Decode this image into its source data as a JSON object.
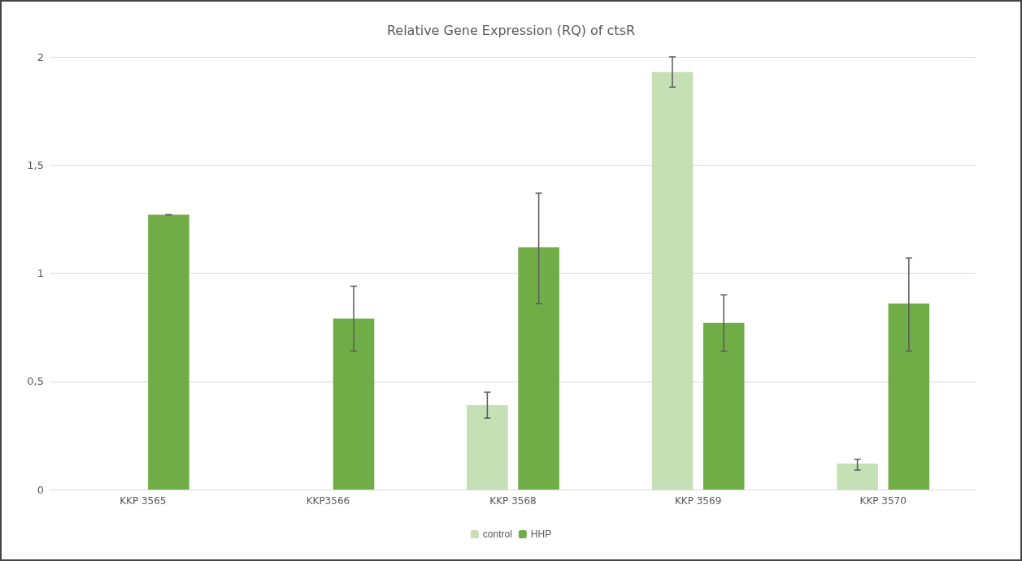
{
  "chart_data": {
    "type": "bar",
    "title": "Relative Gene Expression (RQ) of ctsR",
    "categories": [
      "KKP 3565",
      "KKP3566",
      "KKP 3568",
      "KKP 3569",
      "KKP 3570"
    ],
    "series": [
      {
        "name": "control",
        "color": "#c5e0b4",
        "values": [
          null,
          null,
          0.39,
          1.93,
          0.12
        ],
        "errors": [
          null,
          null,
          [
            0.33,
            0.45
          ],
          [
            1.86,
            2.0
          ],
          [
            0.09,
            0.14
          ]
        ]
      },
      {
        "name": "HHP",
        "color": "#70ad47",
        "values": [
          1.27,
          0.79,
          1.12,
          0.77,
          0.86
        ],
        "errors": [
          0,
          [
            0.64,
            0.94
          ],
          [
            0.86,
            1.37
          ],
          [
            0.64,
            0.9
          ],
          [
            0.64,
            1.07
          ]
        ]
      }
    ],
    "ylim": [
      0,
      2
    ],
    "yticks": [
      0,
      {
        "value": 0.5,
        "label": "0,5"
      },
      1,
      {
        "value": 1.5,
        "label": "1,5"
      },
      2
    ],
    "grid": "y",
    "legend": "bottom"
  }
}
